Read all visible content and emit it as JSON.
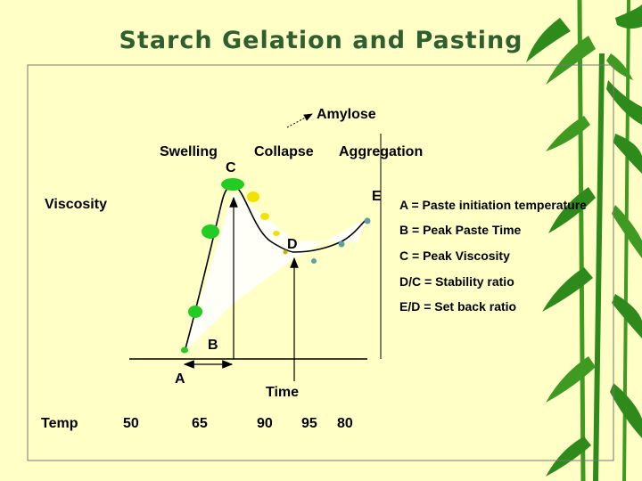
{
  "title": "Starch Gelation and Pasting",
  "labels": {
    "amylose": "Amylose",
    "swelling": "Swelling",
    "collapse": "Collapse",
    "aggregation": "Aggregation",
    "viscosity": "Viscosity",
    "time": "Time",
    "temp": "Temp",
    "point_a": "A",
    "point_b": "B",
    "point_c": "C",
    "point_d": "D",
    "point_e": "E"
  },
  "definitions": [
    "A = Paste initiation temperature",
    "B = Peak Paste Time",
    "C = Peak Viscosity",
    "D/C = Stability ratio",
    "E/D = Set back ratio"
  ],
  "temperatures": [
    "50",
    "65",
    "90",
    "95",
    "80"
  ],
  "colors": {
    "background": "#ffffc6",
    "title": "#2f5e2f",
    "bamboo": "#2f8a1c",
    "granule_green": "#22cc22",
    "granule_yellow": "#f2e200",
    "shade": "#ffffff"
  }
}
